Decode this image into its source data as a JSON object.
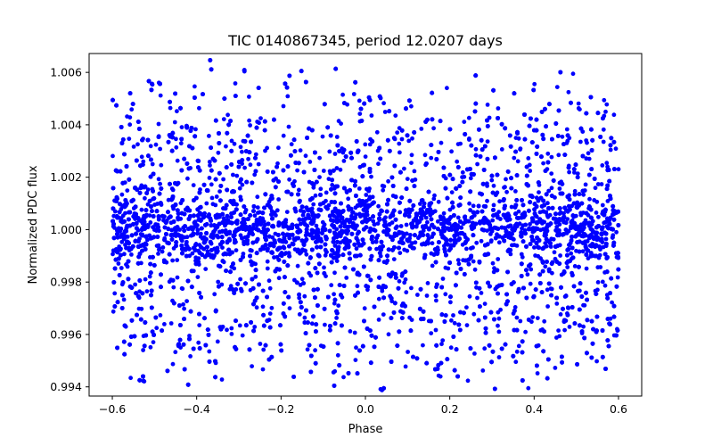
{
  "chart_data": {
    "type": "scatter",
    "title": "TIC 0140867345, period 12.0207 days",
    "xlabel": "Phase",
    "ylabel": "Normalized PDC flux",
    "xlim": [
      -0.655,
      0.655
    ],
    "ylim": [
      0.99365,
      1.00672
    ],
    "xticks": [
      -0.6,
      -0.4,
      -0.2,
      0.0,
      0.2,
      0.4,
      0.6
    ],
    "xtick_labels": [
      "−0.6",
      "−0.4",
      "−0.2",
      "0.0",
      "0.2",
      "0.4",
      "0.6"
    ],
    "yticks": [
      0.994,
      0.996,
      0.998,
      1.0,
      1.002,
      1.004,
      1.006
    ],
    "ytick_labels": [
      "0.994",
      "0.996",
      "0.998",
      "1.000",
      "1.002",
      "1.004",
      "1.006"
    ],
    "grid": false,
    "marker_color": "#0000ff",
    "series": [
      {
        "x_range": [
          -0.6,
          0.6
        ],
        "baseline": 1.0,
        "noise_sd": 0.00065,
        "oscillation_amplitudes": [
          0.0055,
          0.0045,
          0.0035,
          0.0025
        ],
        "oscillation_frequency_cycles_per_unit_phase": 6.15,
        "approx_point_count": 9000
      }
    ]
  }
}
